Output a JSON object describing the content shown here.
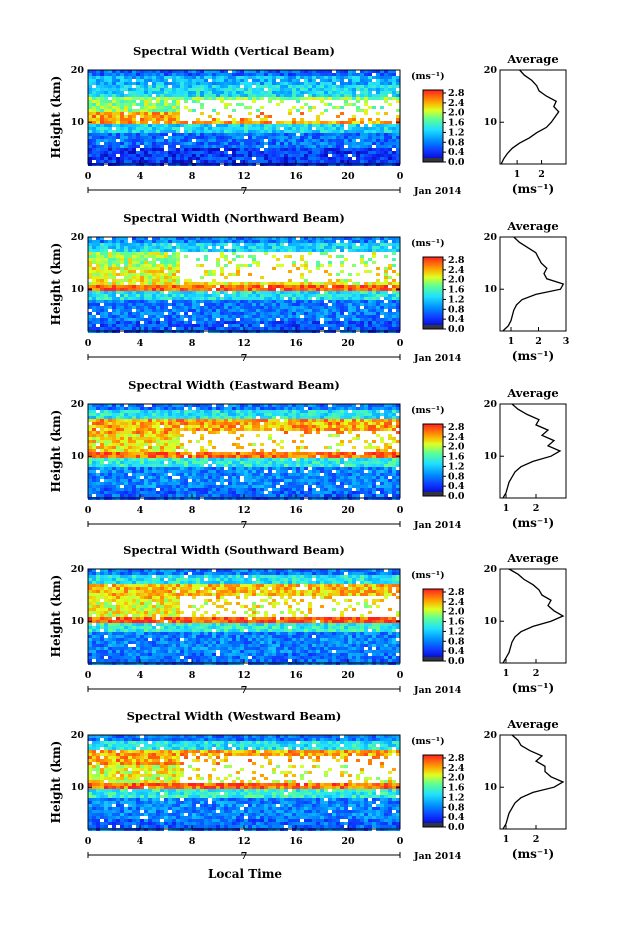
{
  "panel_titles": [
    "Spectral Width (Vertical Beam)",
    "Spectral Width (Northward Beam)",
    "Spectral Width (Eastward Beam)",
    "Spectral Width (Southward Beam)",
    "Spectral Width (Westward Beam)"
  ],
  "xlabel_bottom": "Local Time",
  "ylabel": "Height (km)",
  "date_label": "Jan 2014",
  "day_marker": "7",
  "average_title": "Average",
  "colorbar_unit": "(ms⁻¹)",
  "average_xlabel": "(ms⁻¹)",
  "colorbar_ticks": [
    "2.8",
    "2.4",
    "2.0",
    "1.6",
    "1.2",
    "0.8",
    "0.4",
    "0.0"
  ],
  "chart_data": [
    {
      "type": "heatmap",
      "title": "Spectral Width (Vertical Beam)",
      "xlabel": "",
      "ylabel": "Height (km)",
      "x_ticks": [
        "0",
        "4",
        "8",
        "12",
        "16",
        "20",
        "0"
      ],
      "y_ticks": [
        "10",
        "20"
      ],
      "xlim": [
        0,
        24
      ],
      "ylim": [
        2,
        20
      ],
      "colorbar": {
        "unit": "(ms⁻¹)",
        "ticks": [
          "2.8",
          "2.4",
          "2.0",
          "1.6",
          "1.2",
          "0.8",
          "0.4",
          "0.0"
        ],
        "range": [
          0.0,
          3.0
        ]
      },
      "layers": [
        {
          "z": [
            1,
            5
          ],
          "value": 0.45
        },
        {
          "z": [
            5,
            8
          ],
          "value": 0.75
        },
        {
          "z": [
            8,
            9.5
          ],
          "value": 1.3
        },
        {
          "z": [
            9.5,
            12
          ],
          "value": 2.5
        },
        {
          "z": [
            12,
            15
          ],
          "value": 1.9
        },
        {
          "z": [
            15,
            17
          ],
          "value": 1.3
        },
        {
          "z": [
            17,
            19
          ],
          "value": 1.1
        },
        {
          "z": [
            19,
            20
          ],
          "value": 0.7
        }
      ],
      "white_region": {
        "t": [
          7,
          24
        ],
        "z": [
          10.5,
          14
        ]
      },
      "average_profile": {
        "title": "Average",
        "xlabel": "(ms⁻¹)",
        "x_ticks": [
          "1",
          "2"
        ],
        "y_ticks": [
          "10",
          "20"
        ],
        "xlim": [
          0.3,
          3.0
        ],
        "ylim": [
          2,
          20
        ],
        "height": [
          2,
          3,
          4,
          5,
          6,
          7,
          8,
          9,
          10,
          11,
          12,
          13,
          14,
          15,
          16,
          17,
          18,
          19,
          20
        ],
        "width": [
          0.35,
          0.45,
          0.6,
          0.8,
          1.1,
          1.5,
          1.8,
          2.2,
          2.4,
          2.55,
          2.7,
          2.5,
          2.6,
          2.2,
          1.9,
          1.8,
          1.6,
          1.3,
          1.1
        ]
      }
    },
    {
      "type": "heatmap",
      "title": "Spectral Width (Northward Beam)",
      "xlabel": "",
      "ylabel": "Height (km)",
      "x_ticks": [
        "0",
        "4",
        "8",
        "12",
        "16",
        "20",
        "0"
      ],
      "y_ticks": [
        "10",
        "20"
      ],
      "xlim": [
        0,
        24
      ],
      "ylim": [
        2,
        20
      ],
      "colorbar": {
        "unit": "(ms⁻¹)",
        "ticks": [
          "2.8",
          "2.4",
          "2.0",
          "1.6",
          "1.2",
          "0.8",
          "0.4",
          "0.0"
        ],
        "range": [
          0.0,
          3.0
        ]
      },
      "layers": [
        {
          "z": [
            1,
            4
          ],
          "value": 0.6
        },
        {
          "z": [
            4,
            8
          ],
          "value": 0.8
        },
        {
          "z": [
            8,
            9.5
          ],
          "value": 1.4
        },
        {
          "z": [
            9.5,
            11
          ],
          "value": 2.8
        },
        {
          "z": [
            11,
            14
          ],
          "value": 2.2
        },
        {
          "z": [
            14,
            17
          ],
          "value": 2.0
        },
        {
          "z": [
            17,
            19
          ],
          "value": 1.3
        },
        {
          "z": [
            19,
            20
          ],
          "value": 0.8
        }
      ],
      "white_region": {
        "t": [
          7,
          24
        ],
        "z": [
          11.5,
          17
        ]
      },
      "average_profile": {
        "title": "Average",
        "xlabel": "(ms⁻¹)",
        "x_ticks": [
          "1",
          "2",
          "3"
        ],
        "y_ticks": [
          "10",
          "20"
        ],
        "xlim": [
          0.6,
          3.0
        ],
        "ylim": [
          2,
          20
        ],
        "height": [
          2,
          3,
          4,
          5,
          6,
          7,
          8,
          9,
          10,
          11,
          12,
          13,
          14,
          15,
          16,
          17,
          18,
          19,
          20
        ],
        "width": [
          0.7,
          0.9,
          1.0,
          1.05,
          1.1,
          1.2,
          1.4,
          1.9,
          2.8,
          2.9,
          2.3,
          2.2,
          2.3,
          2.1,
          2.0,
          1.9,
          1.6,
          1.3,
          1.1
        ]
      }
    },
    {
      "type": "heatmap",
      "title": "Spectral Width (Eastward Beam)",
      "xlabel": "",
      "ylabel": "Height (km)",
      "x_ticks": [
        "0",
        "4",
        "8",
        "12",
        "16",
        "20",
        "0"
      ],
      "y_ticks": [
        "10",
        "20"
      ],
      "xlim": [
        0,
        24
      ],
      "ylim": [
        2,
        20
      ],
      "colorbar": {
        "unit": "(ms⁻¹)",
        "ticks": [
          "2.8",
          "2.4",
          "2.0",
          "1.6",
          "1.2",
          "0.8",
          "0.4",
          "0.0"
        ],
        "range": [
          0.0,
          3.0
        ]
      },
      "layers": [
        {
          "z": [
            1,
            4
          ],
          "value": 0.7
        },
        {
          "z": [
            4,
            8
          ],
          "value": 0.85
        },
        {
          "z": [
            8,
            9.5
          ],
          "value": 1.5
        },
        {
          "z": [
            9.5,
            11
          ],
          "value": 2.7
        },
        {
          "z": [
            11,
            14
          ],
          "value": 2.3
        },
        {
          "z": [
            14,
            17
          ],
          "value": 2.5
        },
        {
          "z": [
            17,
            19
          ],
          "value": 1.4
        },
        {
          "z": [
            19,
            20
          ],
          "value": 0.8
        }
      ],
      "white_region": {
        "t": [
          7,
          24
        ],
        "z": [
          11,
          15
        ]
      },
      "average_profile": {
        "title": "Average",
        "xlabel": "(ms⁻¹)",
        "x_ticks": [
          "1",
          "2"
        ],
        "y_ticks": [
          "10",
          "20"
        ],
        "xlim": [
          0.8,
          3.0
        ],
        "ylim": [
          2,
          20
        ],
        "height": [
          2,
          3,
          4,
          5,
          6,
          7,
          8,
          9,
          10,
          11,
          12,
          13,
          14,
          15,
          16,
          17,
          18,
          19,
          20
        ],
        "width": [
          0.9,
          1.0,
          1.05,
          1.1,
          1.2,
          1.3,
          1.5,
          1.9,
          2.5,
          2.8,
          2.4,
          2.6,
          2.2,
          2.4,
          2.0,
          2.1,
          1.7,
          1.4,
          1.2
        ]
      }
    },
    {
      "type": "heatmap",
      "title": "Spectral Width (Southward Beam)",
      "xlabel": "",
      "ylabel": "Height (km)",
      "x_ticks": [
        "0",
        "4",
        "8",
        "12",
        "16",
        "20",
        "0"
      ],
      "y_ticks": [
        "10",
        "20"
      ],
      "xlim": [
        0,
        24
      ],
      "ylim": [
        2,
        20
      ],
      "colorbar": {
        "unit": "(ms⁻¹)",
        "ticks": [
          "2.8",
          "2.4",
          "2.0",
          "1.6",
          "1.2",
          "0.8",
          "0.4",
          "0.0"
        ],
        "range": [
          0.0,
          3.0
        ]
      },
      "layers": [
        {
          "z": [
            1,
            4
          ],
          "value": 0.75
        },
        {
          "z": [
            4,
            8
          ],
          "value": 0.85
        },
        {
          "z": [
            8,
            9.5
          ],
          "value": 1.5
        },
        {
          "z": [
            9.5,
            11
          ],
          "value": 2.8
        },
        {
          "z": [
            11,
            14
          ],
          "value": 2.2
        },
        {
          "z": [
            14,
            17
          ],
          "value": 2.4
        },
        {
          "z": [
            17,
            19
          ],
          "value": 1.4
        },
        {
          "z": [
            19,
            20
          ],
          "value": 0.8
        }
      ],
      "white_region": {
        "t": [
          7,
          24
        ],
        "z": [
          11,
          15
        ]
      },
      "average_profile": {
        "title": "Average",
        "xlabel": "(ms⁻¹)",
        "x_ticks": [
          "1",
          "2"
        ],
        "y_ticks": [
          "10",
          "20"
        ],
        "xlim": [
          0.8,
          3.0
        ],
        "ylim": [
          2,
          20
        ],
        "height": [
          2,
          3,
          4,
          5,
          6,
          7,
          8,
          9,
          10,
          11,
          12,
          13,
          14,
          15,
          16,
          17,
          18,
          19,
          20
        ],
        "width": [
          0.9,
          1.0,
          1.1,
          1.15,
          1.2,
          1.3,
          1.5,
          1.9,
          2.5,
          2.9,
          2.6,
          2.4,
          2.5,
          2.2,
          2.1,
          1.9,
          1.6,
          1.4,
          1.1
        ]
      }
    },
    {
      "type": "heatmap",
      "title": "Spectral Width (Westward Beam)",
      "xlabel": "Local Time",
      "ylabel": "Height (km)",
      "x_ticks": [
        "0",
        "4",
        "8",
        "12",
        "16",
        "20",
        "0"
      ],
      "y_ticks": [
        "10",
        "20"
      ],
      "xlim": [
        0,
        24
      ],
      "ylim": [
        2,
        20
      ],
      "colorbar": {
        "unit": "(ms⁻¹)",
        "ticks": [
          "2.8",
          "2.4",
          "2.0",
          "1.6",
          "1.2",
          "0.8",
          "0.4",
          "0.0"
        ],
        "range": [
          0.0,
          3.0
        ]
      },
      "layers": [
        {
          "z": [
            1,
            4
          ],
          "value": 0.7
        },
        {
          "z": [
            4,
            8
          ],
          "value": 0.85
        },
        {
          "z": [
            8,
            9.5
          ],
          "value": 1.5
        },
        {
          "z": [
            9.5,
            11
          ],
          "value": 2.7
        },
        {
          "z": [
            11,
            14
          ],
          "value": 2.2
        },
        {
          "z": [
            14,
            17
          ],
          "value": 2.5
        },
        {
          "z": [
            17,
            19
          ],
          "value": 1.4
        },
        {
          "z": [
            19,
            20
          ],
          "value": 0.8
        }
      ],
      "white_region": {
        "t": [
          7,
          24
        ],
        "z": [
          11,
          16
        ]
      },
      "average_profile": {
        "title": "Average",
        "xlabel": "(ms⁻¹)",
        "x_ticks": [
          "1",
          "2"
        ],
        "y_ticks": [
          "10",
          "20"
        ],
        "xlim": [
          0.8,
          3.0
        ],
        "ylim": [
          2,
          20
        ],
        "height": [
          2,
          3,
          4,
          5,
          6,
          7,
          8,
          9,
          10,
          11,
          12,
          13,
          14,
          15,
          16,
          17,
          18,
          19,
          20
        ],
        "width": [
          0.9,
          1.0,
          1.05,
          1.1,
          1.2,
          1.3,
          1.5,
          1.9,
          2.6,
          2.9,
          2.5,
          2.3,
          2.3,
          2.0,
          2.2,
          1.8,
          1.5,
          1.4,
          1.2
        ]
      }
    }
  ]
}
